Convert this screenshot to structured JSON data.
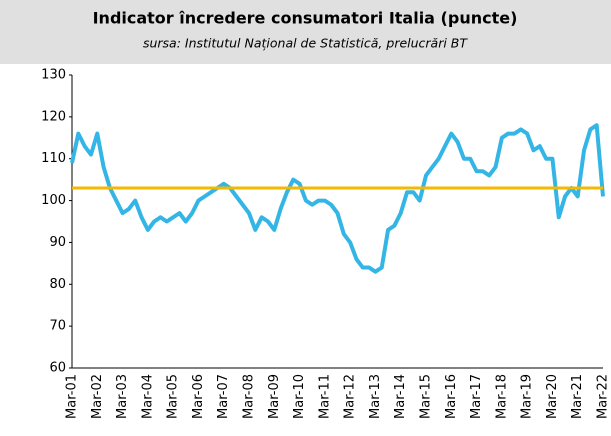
{
  "chart_data": {
    "type": "line",
    "title": "Indicator încredere consumatori Italia (puncte)",
    "subtitle": "sursa: Institutul Național de Statistică, prelucrări BT",
    "categories": [
      "Mar-01",
      null,
      null,
      null,
      "Mar-02",
      null,
      null,
      null,
      "Mar-03",
      null,
      null,
      null,
      "Mar-04",
      null,
      null,
      null,
      "Mar-05",
      null,
      null,
      null,
      "Mar-06",
      null,
      null,
      null,
      "Mar-07",
      null,
      null,
      null,
      "Mar-08",
      null,
      null,
      null,
      "Mar-09",
      null,
      null,
      null,
      "Mar-10",
      null,
      null,
      null,
      "Mar-11",
      null,
      null,
      null,
      "Mar-12",
      null,
      null,
      null,
      "Mar-13",
      null,
      null,
      null,
      "Mar-14",
      null,
      null,
      null,
      "Mar-15",
      null,
      null,
      null,
      "Mar-16",
      null,
      null,
      null,
      "Mar-17",
      null,
      null,
      null,
      "Mar-18",
      null,
      null,
      null,
      "Mar-19",
      null,
      null,
      null,
      "Mar-20",
      null,
      null,
      null,
      "Mar-21",
      null,
      null,
      null,
      "Mar-22"
    ],
    "series": [
      {
        "color": "#33b5e5",
        "values": [
          109,
          116,
          113,
          111,
          116,
          108,
          103,
          100,
          97,
          98,
          100,
          96,
          93,
          95,
          96,
          95,
          96,
          97,
          95,
          97,
          100,
          101,
          102,
          103,
          104,
          103,
          101,
          99,
          97,
          93,
          96,
          95,
          93,
          98,
          102,
          105,
          104,
          100,
          99,
          100,
          100,
          99,
          97,
          92,
          90,
          86,
          84,
          84,
          83,
          84,
          93,
          94,
          97,
          102,
          102,
          100,
          106,
          108,
          110,
          113,
          116,
          114,
          110,
          110,
          107,
          107,
          106,
          108,
          115,
          116,
          116,
          117,
          116,
          112,
          113,
          110,
          110,
          96,
          101,
          103,
          101,
          112,
          117,
          118,
          101
        ]
      }
    ],
    "reference_line": {
      "value": 103,
      "color": "#f5b800"
    },
    "ylim": [
      60,
      130
    ],
    "yticks": [
      60,
      70,
      80,
      90,
      100,
      110,
      120,
      130
    ]
  }
}
